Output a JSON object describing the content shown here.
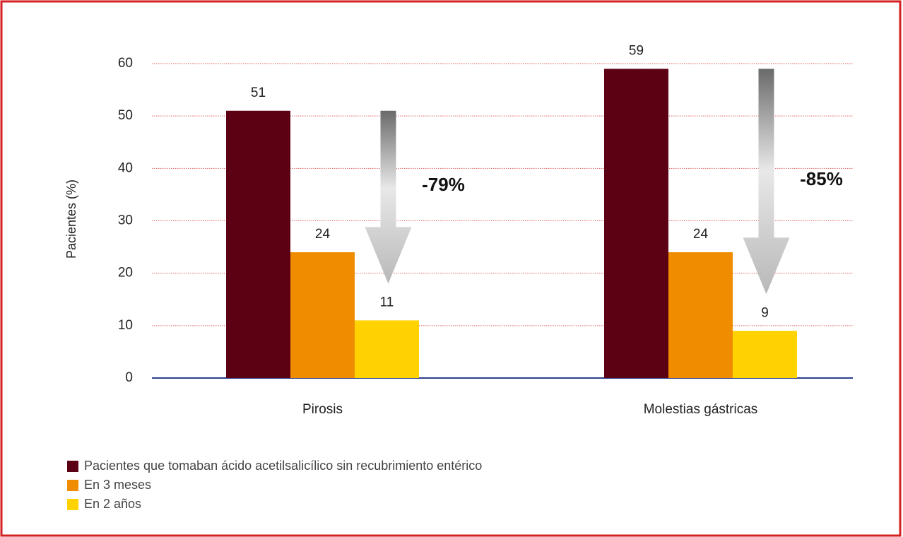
{
  "chart_data": {
    "type": "bar",
    "y_label": "Pacientes (%)",
    "categories": [
      "Pirosis",
      "Molestias gástricas"
    ],
    "series": [
      {
        "name": "Pacientes que tomaban ácido acetilsalicílico sin recubrimiento entérico",
        "color": "#5c0013",
        "values": [
          51,
          59
        ]
      },
      {
        "name": "En 3 meses",
        "color": "#f08c00",
        "values": [
          24,
          24
        ]
      },
      {
        "name": "En 2 años",
        "color": "#ffd200",
        "values": [
          11,
          9
        ]
      }
    ],
    "annotations": [
      "-79%",
      "-85%"
    ],
    "ylim": [
      0,
      60
    ],
    "yticks": [
      0,
      10,
      20,
      30,
      40,
      50,
      60
    ],
    "grid": true
  }
}
